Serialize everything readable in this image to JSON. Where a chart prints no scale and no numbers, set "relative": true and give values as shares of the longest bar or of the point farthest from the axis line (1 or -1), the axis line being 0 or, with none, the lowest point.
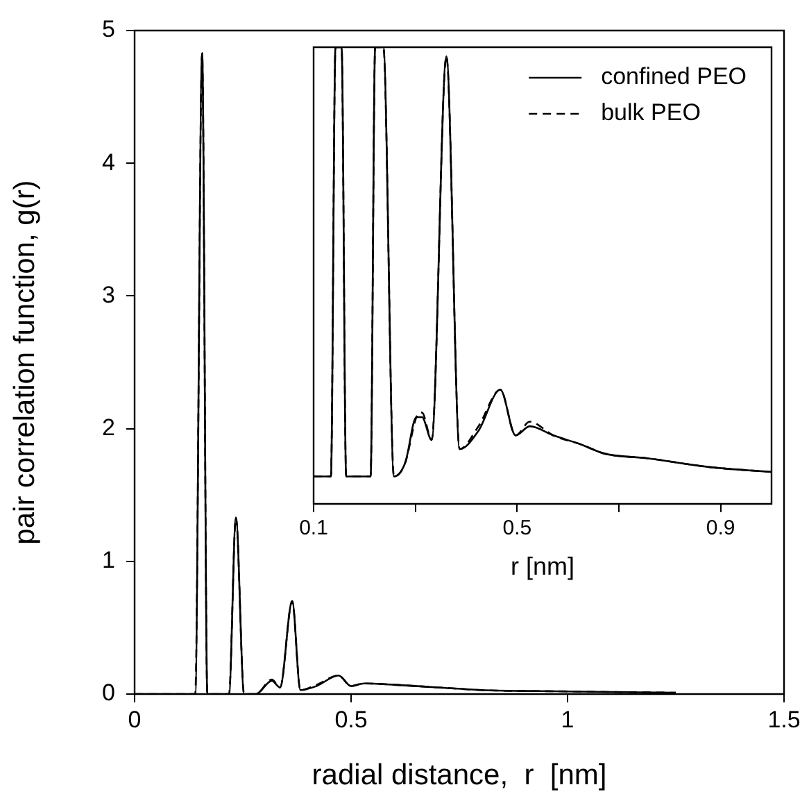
{
  "chart_data": [
    {
      "type": "line",
      "xlabel": "radial distance,  r  [nm]",
      "ylabel": "pair correlation function, g(r)",
      "xlim": [
        0,
        1.5
      ],
      "xticks": [
        0,
        0.5,
        1,
        1.5
      ],
      "ylim": [
        0,
        5
      ],
      "yticks": [
        0,
        1,
        2,
        3,
        4,
        5
      ],
      "grid": false,
      "legend": false,
      "x": [
        0,
        0.14,
        0.156,
        0.168,
        0.218,
        0.234,
        0.253,
        0.28,
        0.317,
        0.336,
        0.364,
        0.383,
        0.42,
        0.471,
        0.5,
        0.53,
        0.6,
        0.7,
        0.8,
        1.0,
        1.25
      ],
      "series": [
        {
          "color": "#000000",
          "line_style": "solid",
          "values": [
            0,
            0,
            4.83,
            0,
            0,
            1.33,
            0,
            0,
            0.1,
            0.05,
            0.7,
            0.03,
            0.06,
            0.14,
            0.06,
            0.08,
            0.07,
            0.05,
            0.03,
            0.02,
            0.01
          ]
        },
        {
          "color": "#000000",
          "line_style": "dashed",
          "values": [
            0,
            0,
            4.83,
            0,
            0,
            1.33,
            0,
            0,
            0.11,
            0.05,
            0.7,
            0.03,
            0.07,
            0.14,
            0.06,
            0.08,
            0.07,
            0.05,
            0.03,
            0.02,
            0.01
          ]
        }
      ]
    },
    {
      "type": "line",
      "xlabel": "r [nm]",
      "xlim": [
        0.1,
        1.0
      ],
      "xticks": [
        0.1,
        {
          "value": 0.3,
          "label": null
        },
        0.5,
        {
          "value": 0.7,
          "label": null
        },
        0.9
      ],
      "relative": true,
      "tick_labels": "x",
      "grid": false,
      "legend": "top right",
      "x": [
        0.1,
        0.134,
        0.143,
        0.155,
        0.164,
        0.212,
        0.221,
        0.237,
        0.258,
        0.28,
        0.302,
        0.313,
        0.332,
        0.361,
        0.387,
        0.424,
        0.467,
        0.497,
        0.525,
        0.571,
        0.626,
        0.672,
        0.755,
        0.883,
        1.0
      ],
      "series": [
        {
          "name": "confined PEO",
          "color": "#000000",
          "line_style": "solid",
          "values": [
            0.06,
            0.06,
            1,
            1,
            0.06,
            0.06,
            1,
            1,
            0.06,
            0.09,
            0.19,
            0.19,
            0.14,
            0.98,
            0.12,
            0.16,
            0.25,
            0.15,
            0.17,
            0.15,
            0.13,
            0.11,
            0.1,
            0.08,
            0.07
          ]
        },
        {
          "name": "bulk PEO",
          "color": "#000000",
          "line_style": "dashed",
          "values": [
            0.06,
            0.06,
            1,
            1,
            0.06,
            0.06,
            1,
            1,
            0.06,
            0.09,
            0.19,
            0.2,
            0.14,
            0.98,
            0.12,
            0.17,
            0.25,
            0.15,
            0.18,
            0.15,
            0.13,
            0.11,
            0.1,
            0.08,
            0.07
          ]
        }
      ]
    }
  ]
}
